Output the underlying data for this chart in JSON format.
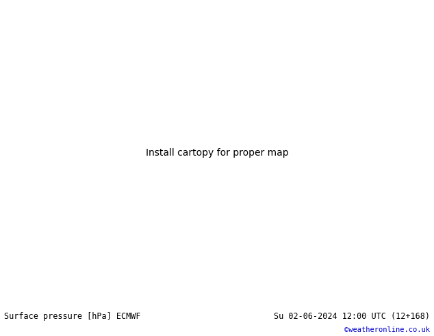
{
  "title_left": "Surface pressure [hPa] ECMWF",
  "title_right": "Su 02-06-2024 12:00 UTC (12+168)",
  "credit": "©weatheronline.co.uk",
  "bg_land_color": "#b5e68d",
  "sea_color": "#c8c8c8",
  "border_color": "#999999",
  "bottom_bar_color": "#ffffff",
  "bottom_text_color": "#000000",
  "credit_color": "#0000cc",
  "red_color": "#cc0000",
  "blue_color": "#0055cc",
  "black_color": "#000000",
  "figsize": [
    6.34,
    4.9
  ],
  "dpi": 100,
  "extent": [
    -10,
    42,
    27,
    55
  ],
  "map_extent_lon": [
    -10,
    42
  ],
  "map_extent_lat": [
    27,
    55
  ]
}
